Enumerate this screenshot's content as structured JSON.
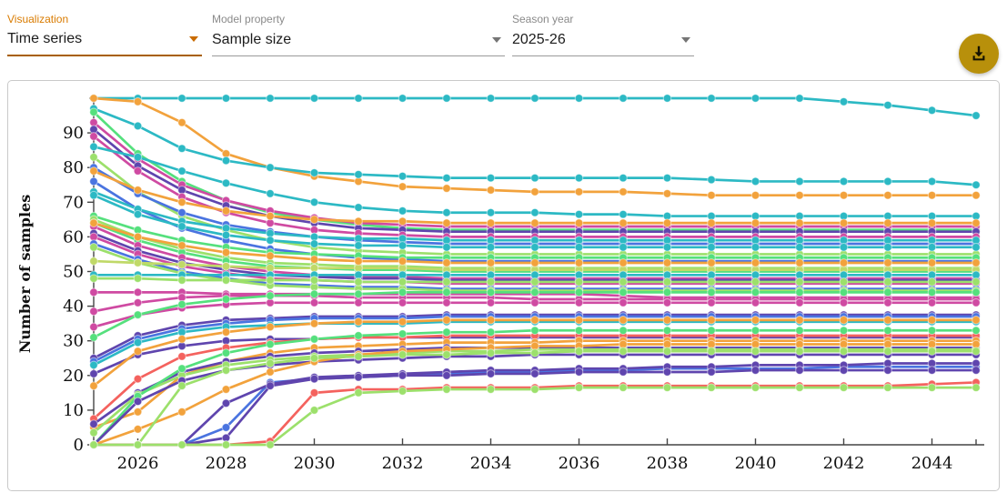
{
  "header": {
    "fields": [
      {
        "label": "Visualization",
        "value": "Time series",
        "accent": true
      },
      {
        "label": "Model property",
        "value": "Sample size",
        "accent": false
      },
      {
        "label": "Season year",
        "value": "2025-26",
        "accent": false
      }
    ],
    "download_button": {
      "icon": "download-icon"
    }
  },
  "colors": {
    "accent_label": "#d97b00",
    "accent_underline": "#a85f00",
    "download_button_bg": "#b8900b",
    "panel_border": "#c9c9c9",
    "axis": "#444444"
  },
  "chart_data": {
    "type": "line",
    "title": "",
    "xlabel": "",
    "ylabel": "Number of samples",
    "x_range": [
      2025,
      2045
    ],
    "y_max": 100,
    "x_ticks": [
      2026,
      2028,
      2030,
      2032,
      2034,
      2036,
      2038,
      2040,
      2042,
      2044
    ],
    "y_ticks": [
      0,
      10,
      20,
      30,
      40,
      50,
      60,
      70,
      80,
      90
    ],
    "grid": false,
    "legend": "none",
    "x": [
      2025,
      2026,
      2027,
      2028,
      2029,
      2030,
      2031,
      2032,
      2033,
      2034,
      2035,
      2036,
      2037,
      2038,
      2039,
      2040,
      2041,
      2042,
      2043,
      2044,
      2045
    ],
    "palette": {
      "teal": "#2cb9c4",
      "orange": "#f2a23c",
      "magenta": "#cf4aa2",
      "purple": "#5f45ae",
      "blue": "#4a74e0",
      "green": "#55e07d",
      "lightgreen": "#9ce06b",
      "red": "#f4625e",
      "yellowgreen": "#c0d968"
    },
    "series": [
      {
        "color": "teal",
        "values": [
          100,
          100,
          100,
          100,
          100,
          100,
          100,
          100,
          100,
          100,
          100,
          100,
          100,
          100,
          100,
          100,
          100,
          99,
          98,
          96.5,
          95
        ]
      },
      {
        "color": "orange",
        "values": [
          100,
          99,
          93,
          84,
          80,
          77.5,
          76,
          74.5,
          74,
          73.5,
          73,
          73,
          73,
          72.5,
          72,
          72,
          72,
          72,
          72,
          72,
          72
        ]
      },
      {
        "color": "teal",
        "values": [
          97,
          92,
          85.5,
          82,
          80,
          78.5,
          78,
          77.5,
          77,
          77,
          77,
          77,
          77,
          77,
          76.5,
          76,
          76,
          76,
          76,
          76,
          75
        ]
      },
      {
        "color": "green",
        "values": [
          96,
          84,
          76,
          70.5,
          67,
          65,
          63.5,
          62.5,
          62,
          62,
          62,
          62,
          62,
          62,
          62,
          62,
          62,
          62,
          62,
          62,
          62
        ]
      },
      {
        "color": "magenta",
        "values": [
          93,
          82.5,
          75,
          70.5,
          67.5,
          65.5,
          64,
          63.5,
          63,
          63,
          63,
          63,
          63,
          63,
          63,
          63,
          63,
          63,
          63,
          63,
          63
        ]
      },
      {
        "color": "purple",
        "values": [
          91,
          80.5,
          73.5,
          69,
          66,
          64,
          62.5,
          62,
          61.5,
          61.5,
          61.5,
          61.5,
          61.5,
          61.5,
          61.5,
          61.5,
          61.5,
          61.5,
          61.5,
          61.5,
          61.5
        ]
      },
      {
        "color": "magenta",
        "values": [
          89,
          79,
          71.5,
          67,
          64,
          62,
          61,
          60.5,
          60,
          60,
          60,
          60,
          60,
          60,
          60,
          60,
          60,
          60,
          60,
          60,
          60
        ]
      },
      {
        "color": "teal",
        "values": [
          86,
          83,
          79,
          75.5,
          72.5,
          70,
          68.5,
          67.5,
          67,
          67,
          67,
          66.5,
          66.5,
          66,
          66,
          66,
          66,
          66,
          66,
          66,
          66
        ]
      },
      {
        "color": "lightgreen",
        "values": [
          83,
          73,
          66,
          62,
          59,
          57,
          56,
          55.5,
          55,
          55,
          55,
          55,
          55,
          55,
          55,
          55,
          55,
          55,
          55,
          55,
          55
        ]
      },
      {
        "color": "blue",
        "values": [
          80,
          72.5,
          67,
          63.5,
          61.5,
          60,
          59,
          58.5,
          58,
          58,
          58,
          58,
          58,
          58,
          58,
          58,
          58,
          58,
          58,
          58,
          58
        ]
      },
      {
        "color": "orange",
        "values": [
          79,
          73.5,
          70,
          67.5,
          66,
          65,
          64.5,
          64.5,
          64,
          64,
          64,
          64,
          64,
          64,
          64,
          64,
          64,
          64,
          64,
          64,
          64
        ]
      },
      {
        "color": "blue",
        "values": [
          76,
          68,
          62.5,
          59,
          56.5,
          55,
          54,
          53.5,
          53,
          53,
          53,
          53,
          53,
          53,
          53,
          53,
          53,
          53,
          53,
          53,
          53
        ]
      },
      {
        "color": "teal",
        "values": [
          73,
          68,
          64.5,
          62.5,
          61,
          60,
          59.5,
          59.5,
          59,
          59,
          59,
          59,
          59,
          59,
          59,
          59,
          59,
          59,
          59,
          59,
          59
        ]
      },
      {
        "color": "teal",
        "values": [
          72,
          66.5,
          63,
          60.5,
          59,
          58,
          57.5,
          57.5,
          57,
          57,
          57,
          57,
          57,
          57,
          57,
          57,
          57,
          57,
          57,
          57,
          57
        ]
      },
      {
        "color": "green",
        "values": [
          66,
          62,
          59,
          57,
          55.5,
          55,
          54.5,
          54,
          54,
          54,
          54,
          54,
          54,
          54,
          54,
          54,
          54,
          54,
          54,
          54,
          54
        ]
      },
      {
        "color": "lightgreen",
        "values": [
          65,
          60,
          56.5,
          54,
          52.5,
          52,
          51.5,
          51.5,
          51,
          51,
          51,
          51,
          51,
          51,
          51,
          51,
          51,
          51,
          51,
          51,
          51
        ]
      },
      {
        "color": "green",
        "values": [
          64,
          59,
          55.5,
          53,
          51.5,
          51,
          50.5,
          50.5,
          50,
          50,
          50,
          50,
          50,
          50,
          50,
          50,
          50,
          50,
          50,
          50,
          50
        ]
      },
      {
        "color": "magenta",
        "values": [
          63,
          57.5,
          54,
          51.5,
          50,
          49,
          48.5,
          48.5,
          48,
          48,
          48,
          48,
          48,
          48,
          48,
          48,
          48,
          48,
          48,
          48,
          48
        ]
      },
      {
        "color": "purple",
        "values": [
          61,
          56,
          52.5,
          50.5,
          49,
          48.5,
          48,
          48,
          47.5,
          47.5,
          47.5,
          47.5,
          47.5,
          47.5,
          47.5,
          47.5,
          47.5,
          47.5,
          47.5,
          47.5,
          47.5
        ]
      },
      {
        "color": "magenta",
        "values": [
          60,
          55,
          51.5,
          49.5,
          48,
          47.5,
          47,
          47,
          46.5,
          46.5,
          46.5,
          46.5,
          46.5,
          46.5,
          46.5,
          46.5,
          46.5,
          46.5,
          46.5,
          46.5,
          46.5
        ]
      },
      {
        "color": "blue",
        "values": [
          58,
          53.5,
          50,
          48,
          46.5,
          46,
          45.5,
          45.5,
          45,
          45,
          45,
          45,
          45,
          45,
          45,
          45,
          45,
          45,
          45,
          45,
          45
        ]
      },
      {
        "color": "lightgreen",
        "values": [
          57,
          52.5,
          49.5,
          47.5,
          46,
          45.5,
          45,
          45,
          44.5,
          44.5,
          44.5,
          44.5,
          44.5,
          44.5,
          44.5,
          44.5,
          44.5,
          44.5,
          44.5,
          44.5,
          44.5
        ]
      },
      {
        "color": "yellowgreen",
        "values": [
          53,
          52.5,
          52,
          51.5,
          51,
          51,
          51,
          51,
          50.5,
          50.5,
          50.5,
          50.5,
          50.5,
          50.5,
          50.5,
          50.5,
          50.5,
          50.5,
          50.5,
          50.5,
          50.5
        ]
      },
      {
        "color": "teal",
        "values": [
          49,
          49,
          49,
          49,
          49,
          49,
          49,
          49,
          49,
          49,
          49,
          49,
          49,
          49,
          49,
          49,
          49,
          49,
          49,
          49,
          49
        ]
      },
      {
        "color": "lightgreen",
        "values": [
          48,
          48,
          47.5,
          47.5,
          47.5,
          47.5,
          47,
          47,
          47,
          47,
          47,
          47,
          47,
          47,
          47,
          47,
          47,
          47,
          47,
          47,
          47
        ]
      },
      {
        "color": "orange",
        "values": [
          64,
          60,
          57.5,
          55.5,
          54.5,
          53.5,
          53,
          53,
          52.5,
          52.5,
          52.5,
          52.5,
          52.5,
          52.5,
          52.5,
          52.5,
          52.5,
          52.5,
          52.5,
          52.5,
          52.5
        ]
      },
      {
        "color": "magenta",
        "values": [
          44,
          44,
          44,
          43.5,
          43.5,
          43.5,
          43.5,
          43.5,
          43.5,
          43.5,
          43.5,
          43.5,
          43,
          42.5,
          42.5,
          42.5,
          42.5,
          42.5,
          42.5,
          42.5,
          42.5
        ]
      },
      {
        "color": "magenta",
        "values": [
          38.5,
          41,
          42.5,
          43,
          43,
          43,
          42.5,
          42.5,
          42.5,
          42.5,
          42,
          42,
          42,
          42,
          42,
          42,
          42,
          42,
          42,
          42,
          42
        ]
      },
      {
        "color": "magenta",
        "values": [
          34,
          37.5,
          39.5,
          40.5,
          41,
          41,
          41,
          41,
          41,
          41,
          41,
          41,
          41,
          41,
          41,
          41,
          41,
          41,
          41,
          41,
          41
        ]
      },
      {
        "color": "green",
        "values": [
          31,
          37.5,
          40.5,
          42,
          43,
          43.5,
          43.5,
          44,
          44,
          44,
          44,
          44,
          44,
          44,
          44,
          44,
          44,
          44,
          44,
          44,
          44
        ]
      },
      {
        "color": "purple",
        "values": [
          25,
          31.5,
          34.5,
          36,
          36.5,
          37,
          37,
          37,
          37.5,
          37.5,
          37.5,
          37.5,
          37.5,
          37.5,
          37.5,
          37.5,
          37.5,
          37.5,
          37.5,
          37.5,
          37.5
        ]
      },
      {
        "color": "blue",
        "values": [
          24,
          30.5,
          33.5,
          35,
          36,
          36.5,
          36.5,
          36.5,
          37,
          37,
          37,
          37,
          37,
          37,
          37,
          37,
          37,
          37,
          37,
          37,
          37
        ]
      },
      {
        "color": "teal",
        "values": [
          23,
          29.5,
          32.5,
          34,
          34.5,
          35,
          35,
          35,
          35.5,
          35.5,
          35.5,
          35.5,
          35.5,
          35.5,
          35.5,
          35.5,
          35.5,
          35.5,
          35.5,
          35.5,
          35.5
        ]
      },
      {
        "color": "purple",
        "values": [
          20.5,
          26,
          28.5,
          30,
          30.5,
          30.5,
          31,
          31,
          31,
          31,
          31,
          31,
          31,
          31,
          31,
          31,
          31,
          31,
          31,
          31,
          31
        ]
      },
      {
        "color": "orange",
        "values": [
          17,
          27,
          30.5,
          32.5,
          34,
          35,
          35.5,
          35.5,
          36,
          36,
          36,
          36,
          36,
          36,
          36,
          36,
          36,
          36,
          36,
          36,
          36
        ]
      },
      {
        "color": "red",
        "values": [
          7.5,
          19,
          25.5,
          28,
          29.5,
          30.5,
          31,
          31,
          31.5,
          31.5,
          31.5,
          31.5,
          31.5,
          31.5,
          31.5,
          31.5,
          31.5,
          31.5,
          31.5,
          31.5,
          31.5
        ]
      },
      {
        "color": "orange",
        "values": [
          5,
          9.5,
          20,
          24,
          26.5,
          28,
          28.5,
          29,
          29.5,
          29.5,
          29.5,
          30,
          30,
          30,
          30,
          30,
          30,
          30,
          30,
          30,
          30
        ]
      },
      {
        "color": "purple",
        "values": [
          6,
          15,
          21,
          24,
          25.5,
          26.5,
          27,
          27.5,
          28,
          28,
          28,
          28,
          28,
          28,
          28,
          28,
          28,
          28,
          28,
          28,
          28
        ]
      },
      {
        "color": "lightgreen",
        "values": [
          3.5,
          14.5,
          20,
          23,
          24.5,
          25.5,
          26,
          26.5,
          27,
          27,
          27.5,
          27.5,
          27.5,
          27.5,
          27.5,
          27.5,
          27.5,
          27.5,
          27.5,
          27.5,
          27.5
        ]
      },
      {
        "color": "green",
        "values": [
          0,
          14,
          22,
          26.5,
          29,
          30.5,
          31.5,
          32,
          32.5,
          32.5,
          33,
          33,
          33,
          33,
          33,
          33,
          33,
          33,
          33,
          33,
          33
        ]
      },
      {
        "color": "purple",
        "values": [
          0,
          12.5,
          18.5,
          21.5,
          23,
          24,
          24.5,
          25,
          25.5,
          25.5,
          26,
          26,
          26,
          26,
          26,
          26,
          26,
          26,
          26,
          26,
          26
        ]
      },
      {
        "color": "orange",
        "values": [
          0,
          4.5,
          9.5,
          16,
          21,
          24,
          26,
          27,
          27.5,
          28,
          28.5,
          28.5,
          29,
          29,
          29,
          29,
          29,
          29,
          29,
          29,
          29
        ]
      },
      {
        "color": "lightgreen",
        "values": [
          0,
          0,
          17,
          21.5,
          23.5,
          25,
          25.5,
          26,
          26,
          26.5,
          26.5,
          27,
          27,
          27,
          27,
          27,
          27,
          27,
          27,
          27,
          27
        ]
      },
      {
        "color": "blue",
        "values": [
          0,
          0,
          0,
          5,
          18,
          19,
          19.5,
          20,
          20.5,
          21,
          21,
          21.5,
          21.5,
          22,
          22,
          22,
          22,
          22.5,
          22.5,
          22.5,
          22.5
        ]
      },
      {
        "color": "purple",
        "values": [
          0,
          0,
          0,
          12,
          17.5,
          19.5,
          20,
          20.5,
          21,
          21.5,
          21.5,
          22,
          22,
          22.5,
          22.5,
          23,
          23,
          23,
          23.5,
          23.5,
          23.5
        ]
      },
      {
        "color": "purple",
        "values": [
          0,
          0,
          0,
          2,
          17,
          19,
          19.5,
          20,
          20,
          20.5,
          20.5,
          21,
          21,
          21,
          21,
          21.5,
          21.5,
          21.5,
          21.5,
          21.5,
          21.5
        ]
      },
      {
        "color": "red",
        "values": [
          0,
          0,
          0,
          0,
          1,
          15,
          16,
          16,
          16.5,
          16.5,
          16.5,
          17,
          17,
          17,
          17,
          17,
          17,
          17,
          17,
          17.5,
          18
        ]
      },
      {
        "color": "lightgreen",
        "values": [
          0,
          0,
          0,
          0,
          0,
          10,
          15,
          15.5,
          16,
          16,
          16,
          16.5,
          16.5,
          16.5,
          16.5,
          16.5,
          16.5,
          16.5,
          16.5,
          16.5,
          16.5
        ]
      }
    ]
  }
}
